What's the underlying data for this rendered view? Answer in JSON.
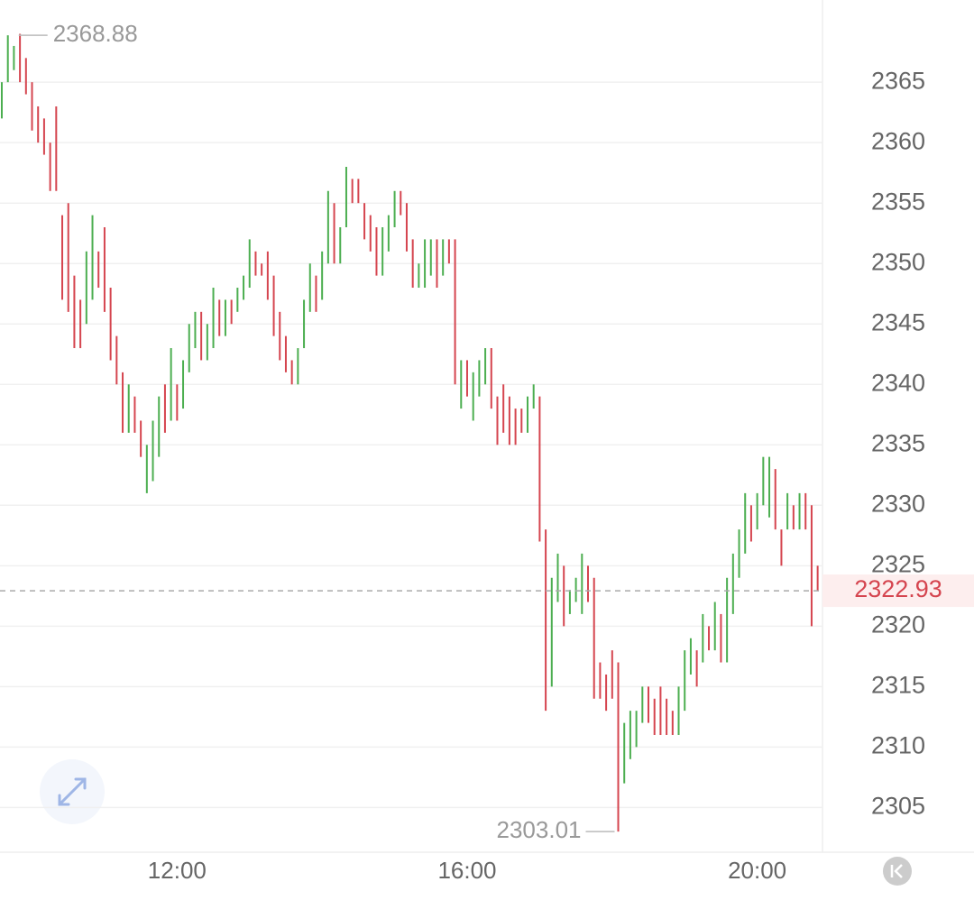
{
  "chart_data": {
    "type": "candlestick",
    "up_color": "#4cae50",
    "down_color": "#d5454f",
    "grid": true,
    "xlim": [
      -0.3,
      135.8
    ],
    "xticks": [
      {
        "value": 29,
        "label": "12:00"
      },
      {
        "value": 77,
        "label": "16:00"
      },
      {
        "value": 125,
        "label": "20:00"
      }
    ],
    "ylim": [
      2301.3,
      2371.8
    ],
    "yticks": [
      2305,
      2310,
      2315,
      2320,
      2325,
      2330,
      2335,
      2340,
      2345,
      2350,
      2355,
      2360,
      2365
    ],
    "open": [
      2362,
      2365,
      2366,
      2369,
      2367,
      2365,
      2363,
      2362,
      2360,
      2363,
      2354,
      2355,
      2349,
      2347,
      2345,
      2347,
      2351,
      2353,
      2348,
      2344,
      2341,
      2336,
      2339,
      2337,
      2331,
      2332,
      2334,
      2340,
      2337,
      2340,
      2338,
      2341,
      2343,
      2346,
      2342,
      2343,
      2347,
      2344,
      2347,
      2346,
      2347,
      2348,
      2351,
      2350,
      2351,
      2349,
      2346,
      2344,
      2342,
      2340,
      2343,
      2346,
      2349,
      2347,
      2350,
      2355,
      2350,
      2353,
      2357,
      2357,
      2355,
      2354,
      2353,
      2349,
      2351,
      2353,
      2356,
      2355,
      2352,
      2348,
      2348,
      2349,
      2352,
      2349,
      2352,
      2352,
      2338,
      2342,
      2337,
      2339,
      2340,
      2343,
      2339,
      2340,
      2339,
      2338,
      2338,
      2336,
      2338,
      2339,
      2328,
      2315,
      2322,
      2325,
      2321,
      2322,
      2321,
      2325,
      2324,
      2317,
      2316,
      2318,
      2317,
      2307,
      2309,
      2310,
      2312,
      2315,
      2314,
      2315,
      2314,
      2313,
      2311,
      2313,
      2316,
      2318,
      2317,
      2320,
      2318,
      2321,
      2317,
      2321,
      2324,
      2326,
      2330,
      2328,
      2330,
      2329,
      2333,
      2328,
      2328,
      2330,
      2328,
      2331,
      2330,
      2325
    ],
    "close": [
      2365,
      2368.88,
      2368,
      2365,
      2364,
      2361,
      2360,
      2359,
      2356,
      2356,
      2347,
      2346,
      2343,
      2343,
      2351,
      2354,
      2348,
      2346,
      2342,
      2340,
      2336,
      2340,
      2336,
      2334,
      2335,
      2337,
      2339,
      2336,
      2343,
      2337,
      2342,
      2345,
      2346,
      2342,
      2345,
      2348,
      2344,
      2347,
      2345,
      2348,
      2349,
      2352,
      2349,
      2349,
      2347,
      2344,
      2342,
      2341,
      2340,
      2343,
      2347,
      2350,
      2346,
      2351,
      2356,
      2350,
      2353,
      2358,
      2355,
      2355,
      2352,
      2351,
      2349,
      2353,
      2354,
      2356,
      2354,
      2351,
      2348,
      2350,
      2352,
      2352,
      2348,
      2352,
      2350,
      2340,
      2342,
      2339,
      2341,
      2342,
      2343,
      2338,
      2335,
      2336,
      2335,
      2335,
      2336,
      2339,
      2340,
      2327,
      2313,
      2324,
      2326,
      2320,
      2323,
      2324,
      2326,
      2322,
      2314,
      2314,
      2313,
      2314,
      2303.01,
      2312,
      2313,
      2313,
      2315,
      2312,
      2311,
      2311,
      2311,
      2311,
      2315,
      2318,
      2319,
      2315,
      2321,
      2318,
      2322,
      2317,
      2324,
      2326,
      2328,
      2331,
      2327,
      2331,
      2334,
      2334,
      2328,
      2325,
      2331,
      2328,
      2331,
      2328,
      2320,
      2322.93
    ],
    "high_annotation": {
      "index": 1,
      "value": 2368.88
    },
    "low_annotation": {
      "index": 102,
      "value": 2303.01
    },
    "last_price": 2322.93
  }
}
